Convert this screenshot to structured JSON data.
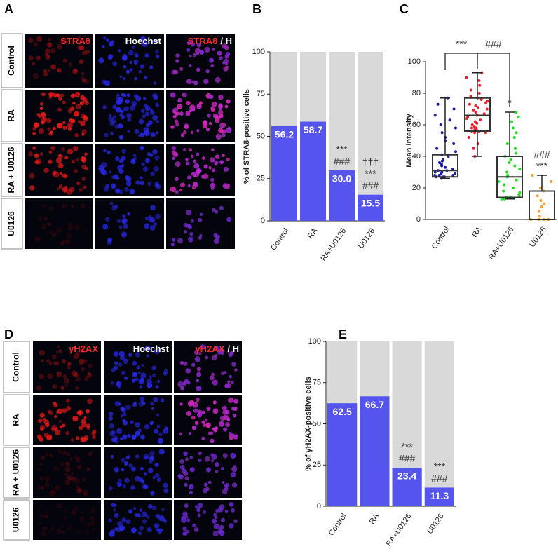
{
  "panel_labels": [
    "A",
    "B",
    "C",
    "D",
    "E"
  ],
  "image_panels": [
    {
      "rows": [
        "Control",
        "RA",
        "RA + U0126",
        "U0126"
      ],
      "columns": [
        {
          "parts": [
            "STRA8"
          ],
          "colors": [
            "#ff2a2a"
          ]
        },
        {
          "parts": [
            "Hoechst"
          ],
          "colors": [
            "#ffffff"
          ]
        },
        {
          "parts": [
            "STRA8",
            "/ H"
          ],
          "colors": [
            "#ff2a2a",
            "#ffffff"
          ]
        }
      ]
    },
    {
      "rows": [
        "Control",
        "RA",
        "RA + U0126",
        "U0126"
      ],
      "columns": [
        {
          "parts": [
            "γH2AX"
          ],
          "colors": [
            "#ff2a2a"
          ]
        },
        {
          "parts": [
            "Hoechst"
          ],
          "colors": [
            "#ffffff"
          ]
        },
        {
          "parts": [
            "γH2AX",
            "/ H"
          ],
          "colors": [
            "#ff2a2a",
            "#ffffff"
          ]
        }
      ]
    }
  ],
  "chart_data": [
    {
      "type": "bar",
      "y_label": "% of STRA8-positive cells",
      "categories": [
        "Control",
        "RA",
        "RA+U0126",
        "U0126"
      ],
      "values": [
        56.2,
        58.7,
        30.0,
        15.5
      ],
      "value_labels": [
        "56.2",
        "58.7",
        "30.0",
        "15.5"
      ],
      "color": "#5555ee",
      "background_color": "#d9d9d9",
      "significance": [
        null,
        null,
        [
          "***",
          "###"
        ],
        [
          "†††",
          "***",
          "###"
        ]
      ],
      "ylim": [
        0,
        100
      ],
      "yticks": [
        0,
        25,
        50,
        75,
        100
      ]
    },
    {
      "type": "box",
      "y_label": "Mean intensity",
      "categories": [
        "Control",
        "RA",
        "RA+U0126",
        "U0126"
      ],
      "groups": [
        {
          "color": "#1c1ca8",
          "min": 26,
          "q1": 27,
          "median": 31,
          "q3": 41,
          "max": 77,
          "points": [
            26,
            26,
            27,
            27,
            27,
            28,
            28,
            28,
            29,
            29,
            30,
            30,
            31,
            31,
            32,
            33,
            34,
            35,
            36,
            37,
            38,
            40,
            41,
            43,
            45,
            48,
            50,
            52,
            55,
            58,
            60,
            63,
            66,
            70,
            73,
            77
          ]
        },
        {
          "color": "#e8202a",
          "min": 40,
          "q1": 56,
          "median": 66,
          "q3": 77,
          "max": 93,
          "points": [
            40,
            45,
            48,
            52,
            55,
            55,
            56,
            56,
            57,
            57,
            58,
            58,
            59,
            60,
            61,
            62,
            63,
            64,
            65,
            66,
            67,
            68,
            69,
            70,
            71,
            72,
            73,
            74,
            75,
            76,
            77,
            78,
            80,
            82,
            85,
            88,
            90,
            93
          ]
        },
        {
          "color": "#22dd22",
          "min": 13,
          "q1": 14,
          "median": 27,
          "q3": 40,
          "max": 68,
          "points": [
            13,
            13,
            14,
            14,
            14,
            15,
            16,
            17,
            18,
            20,
            22,
            24,
            25,
            27,
            28,
            30,
            32,
            34,
            36,
            38,
            40,
            42,
            45,
            48,
            52,
            55,
            58,
            62,
            65,
            68
          ]
        },
        {
          "color": "#f5a030",
          "min": 0,
          "q1": 0,
          "median": 0,
          "q3": 18,
          "max": 28,
          "points": [
            0,
            0,
            0,
            0,
            0,
            0,
            2,
            5,
            8,
            10,
            12,
            15,
            18,
            20,
            24,
            28
          ]
        }
      ],
      "brackets": [
        {
          "from": 0,
          "to": 1,
          "label": "***"
        },
        {
          "from": 1,
          "to": 2,
          "label": "###"
        }
      ],
      "significance": [
        null,
        null,
        [
          "*"
        ],
        [
          "###",
          "***"
        ]
      ],
      "ylim": [
        0,
        100
      ],
      "yticks": [
        0,
        20,
        40,
        60,
        80,
        100
      ]
    },
    {
      "type": "bar",
      "y_label": "% of γH2AX-positive cells",
      "categories": [
        "Control",
        "RA",
        "RA+U0126",
        "U0126"
      ],
      "values": [
        62.5,
        66.7,
        23.4,
        11.3
      ],
      "value_labels": [
        "62.5",
        "66.7",
        "23.4",
        "11.3"
      ],
      "color": "#5555ee",
      "background_color": "#d9d9d9",
      "significance": [
        null,
        null,
        [
          "***",
          "###"
        ],
        [
          "***",
          "###"
        ]
      ],
      "ylim": [
        0,
        100
      ],
      "yticks": [
        0,
        25,
        50,
        75,
        100
      ]
    }
  ]
}
